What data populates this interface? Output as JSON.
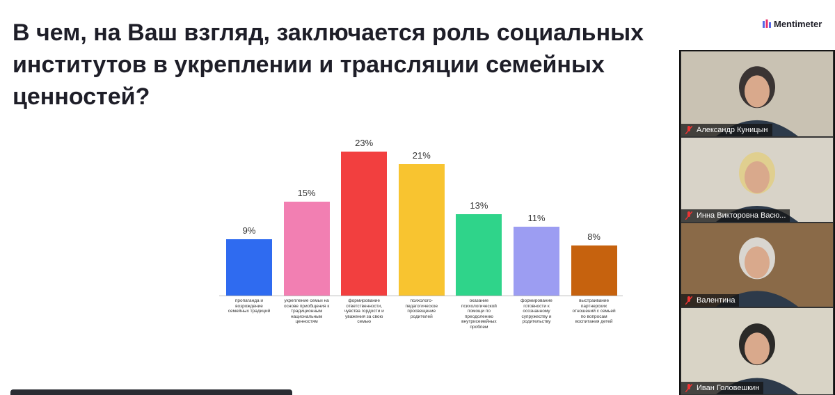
{
  "slide": {
    "brand": "Mentimeter",
    "title_lines": [
      "В чем, на Ваш взгляд, заключается роль социальных",
      "институтов в укреплении и трансляции семейных",
      "ценностей?"
    ]
  },
  "chart_data": {
    "type": "bar",
    "categories": [
      "пропаганда и возрождение семейных традиций",
      "укрепление семьи на основе приобщения к традиционным национальным ценностям",
      "формирование ответственности, чувства гордости и уважения за свою семью",
      "психолого-педагогическое просвещение родителей",
      "оказание психологической помощи по преодолению внутрисемейных проблем",
      "формирование готовности к осознанному супружеству и родительству",
      "выстраивание партнерских отношений с семьей по вопросам воспитания детей"
    ],
    "values": [
      9,
      15,
      23,
      21,
      13,
      11,
      8
    ],
    "value_labels": [
      "9%",
      "15%",
      "23%",
      "21%",
      "13%",
      "11%",
      "8%"
    ],
    "colors": [
      "#2f6bf0",
      "#f27fb2",
      "#f23f3f",
      "#f8c430",
      "#2fd48a",
      "#9c9df2",
      "#c6620e"
    ]
  },
  "participants": [
    "Александр Куницын",
    "Инна Викторовна Васю...",
    "Валентина",
    "Иван Головешкин"
  ]
}
